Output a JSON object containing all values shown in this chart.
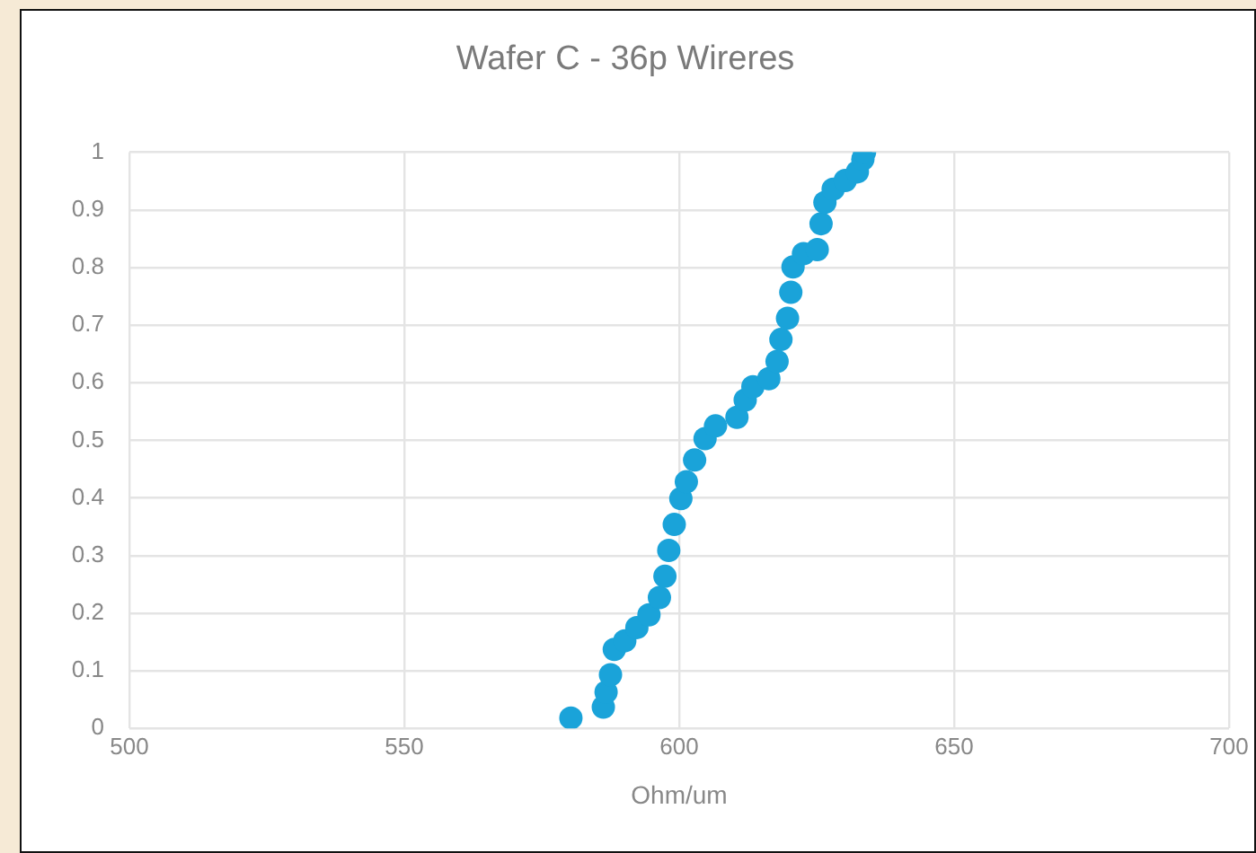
{
  "chart_data": {
    "type": "scatter",
    "title": "Wafer C - 36p Wireres",
    "xlabel": "Ohm/um",
    "xlim": [
      500,
      700
    ],
    "xticks": [
      500,
      550,
      600,
      650,
      700
    ],
    "ylim": [
      0,
      1
    ],
    "yticks": [
      0,
      0.1,
      0.2,
      0.3,
      0.4,
      0.5,
      0.6,
      0.7,
      0.8,
      0.9,
      1
    ],
    "grid": true,
    "legend": false,
    "marker": "circle",
    "series": [
      {
        "color": "#1aa3d9",
        "x": [
          580.3,
          586.2,
          586.7,
          587.5,
          588.2,
          590.1,
          592.3,
          594.5,
          596.4,
          597.4,
          598.1,
          599.1,
          600.3,
          601.3,
          602.8,
          604.7,
          606.6,
          610.5,
          612.0,
          613.4,
          616.3,
          617.8,
          618.5,
          619.7,
          620.3,
          620.7,
          622.6,
          625.1,
          625.8,
          626.5,
          628.0,
          630.2,
          632.4,
          633.4,
          633.7
        ],
        "values": [
          0.018,
          0.037,
          0.063,
          0.093,
          0.137,
          0.152,
          0.175,
          0.197,
          0.227,
          0.264,
          0.309,
          0.354,
          0.399,
          0.428,
          0.466,
          0.503,
          0.525,
          0.54,
          0.57,
          0.593,
          0.607,
          0.637,
          0.675,
          0.712,
          0.757,
          0.801,
          0.824,
          0.831,
          0.876,
          0.913,
          0.936,
          0.951,
          0.966,
          0.988,
          1.0
        ]
      }
    ]
  }
}
